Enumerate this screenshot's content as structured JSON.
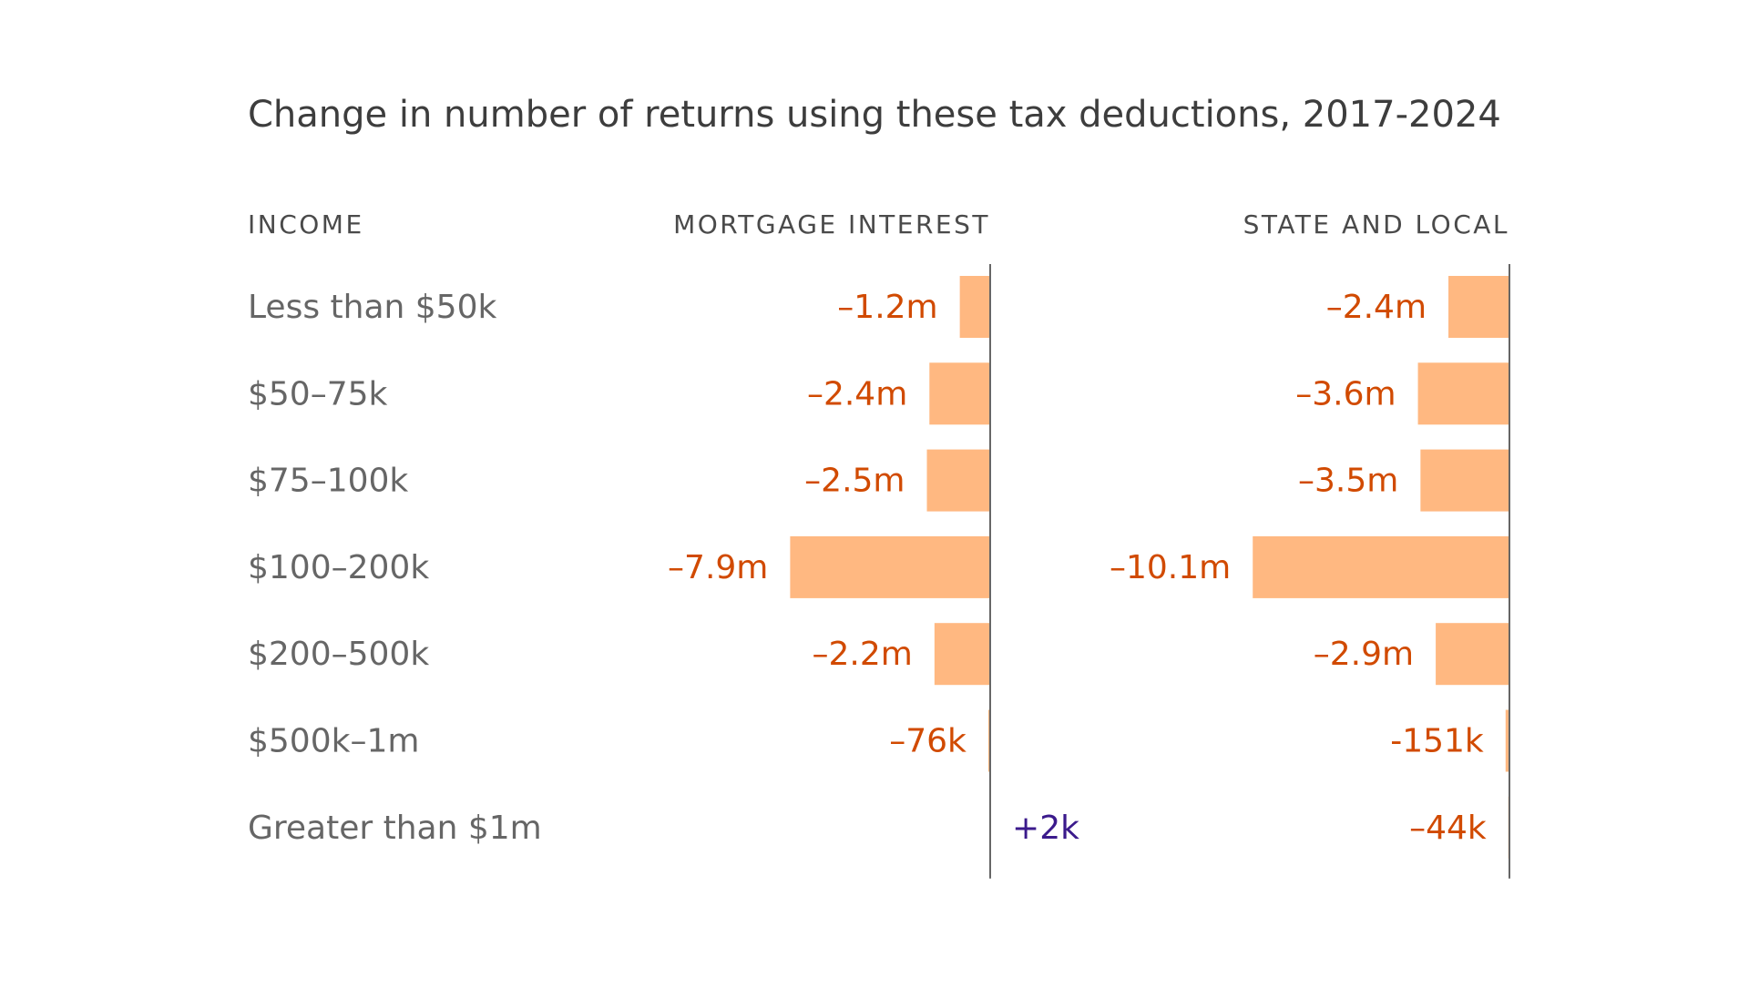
{
  "chart_data": {
    "type": "bar",
    "title": "Change in number of returns using these tax deductions, 2017-2024",
    "category_header": "INCOME",
    "categories": [
      "Less than $50k",
      "$50–75k",
      "$75–100k",
      "$100–200k",
      "$200–500k",
      "$500k–1m",
      "Greater than $1m"
    ],
    "series": [
      {
        "name": "MORTGAGE INTEREST",
        "values": [
          -1.2,
          -2.4,
          -2.5,
          -7.9,
          -2.2,
          -0.076,
          0.002
        ],
        "labels": [
          "–1.2m",
          "–2.4m",
          "–2.5m",
          "–7.9m",
          "–2.2m",
          "–76k",
          "+2k"
        ]
      },
      {
        "name": "STATE AND LOCAL",
        "values": [
          -2.4,
          -3.6,
          -3.5,
          -10.1,
          -2.9,
          -0.151,
          -0.044
        ],
        "labels": [
          "–2.4m",
          "–3.6m",
          "–3.5m",
          "–10.1m",
          "–2.9m",
          "-151k",
          "–44k"
        ]
      }
    ],
    "unit": "millions of returns",
    "colors": {
      "bar": "#ffb881",
      "negative_label": "#d14a00",
      "positive_label": "#3b1a8c",
      "category_label": "#666666",
      "header": "#4a4a4a",
      "title": "#3d3d3d",
      "axis": "#666666"
    }
  }
}
